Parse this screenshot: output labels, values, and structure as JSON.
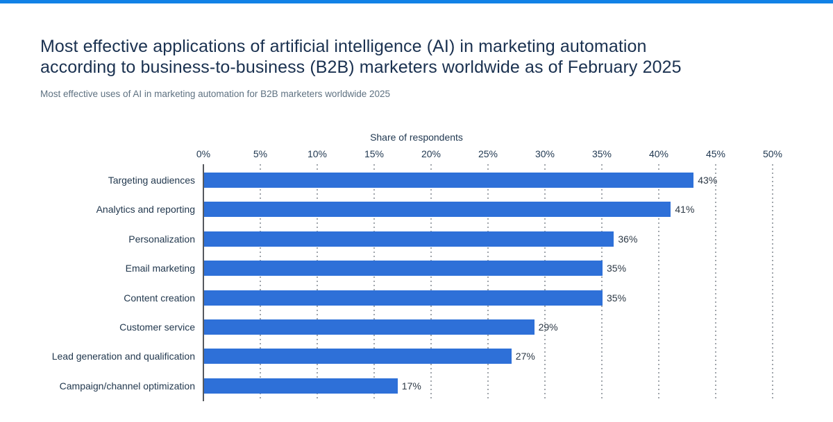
{
  "page": {
    "accent_color": "#1181e6",
    "background_color": "#ffffff"
  },
  "header": {
    "title_lines": [
      "Most effective applications of artificial intelligence (AI) in marketing automation",
      "according to business-to-business (B2B) marketers worldwide as of February 2025"
    ],
    "subtitle": "Most effective uses of AI in marketing automation for B2B marketers worldwide 2025"
  },
  "chart_data": {
    "type": "bar",
    "orientation": "horizontal",
    "axis_title": "Share of respondents",
    "categories": [
      "Targeting audiences",
      "Analytics and reporting",
      "Personalization",
      "Email marketing",
      "Content creation",
      "Customer service",
      "Lead generation and qualification",
      "Campaign/channel optimization"
    ],
    "values": [
      43,
      41,
      36,
      35,
      35,
      29,
      27,
      17
    ],
    "value_suffix": "%",
    "x_ticks": [
      "0%",
      "5%",
      "10%",
      "15%",
      "20%",
      "25%",
      "30%",
      "35%",
      "40%",
      "45%",
      "50%"
    ],
    "xlim": [
      0,
      50
    ],
    "tick_step": 5,
    "grid": "dotted-vertical",
    "legend": "none",
    "bar_color": "#2e70d8",
    "axis_line_color": "#56595e",
    "gridline_color": "#a0a5ab"
  }
}
